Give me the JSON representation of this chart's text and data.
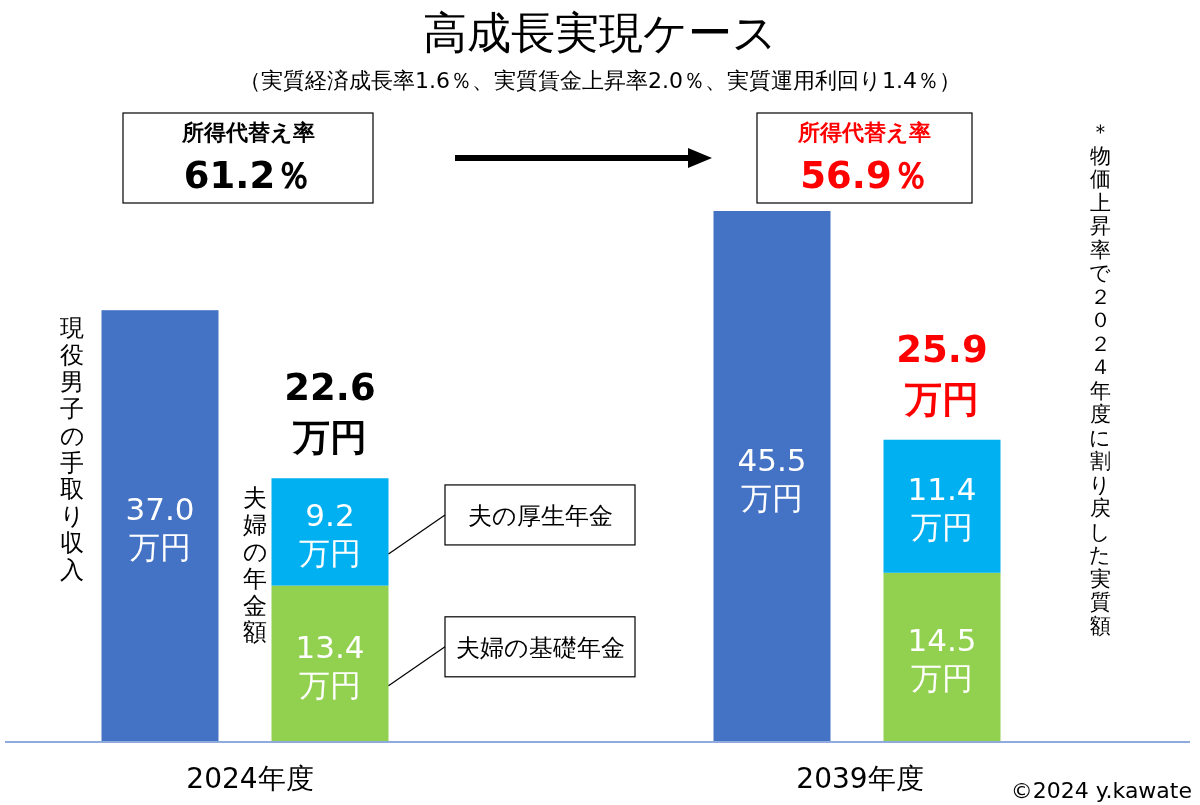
{
  "chart_data": {
    "type": "bar",
    "title": "高成長実現ケース",
    "subtitle": "（実質経済成長率1.6％、実質賃金上昇率2.0％、実質運用利回り1.4％）",
    "categories": [
      null,
      null,
      null,
      null
    ],
    "stacked": true,
    "series": [
      {
        "name": "現役男子の手取り収入",
        "color": "#4472c4",
        "values": [
          37.0,
          null,
          45.5,
          null
        ],
        "value_labels": [
          "37.0万円",
          null,
          "45.5万円",
          null
        ]
      },
      {
        "name": "夫婦の基礎年金",
        "color": "#92d050",
        "values": [
          null,
          13.4,
          null,
          14.5
        ],
        "value_labels": [
          null,
          "13.4万円",
          null,
          "14.5万円"
        ]
      },
      {
        "name": "夫の厚生年金",
        "color": "#00b0f0",
        "values": [
          null,
          9.2,
          null,
          11.4
        ],
        "value_labels": [
          null,
          "9.2万円",
          null,
          "11.4万円"
        ]
      }
    ],
    "totals": [
      null,
      "22.6万円",
      null,
      "25.9万円"
    ],
    "annotations": [
      "所得代替え率",
      "61.2％",
      "所得代替え率",
      "56.9％",
      "夫婦の年金額",
      "＊物価上昇率で２０２４年度に割り戻した実質額",
      "2024年度",
      "2039年度",
      "©2024 y.kawate"
    ]
  }
}
